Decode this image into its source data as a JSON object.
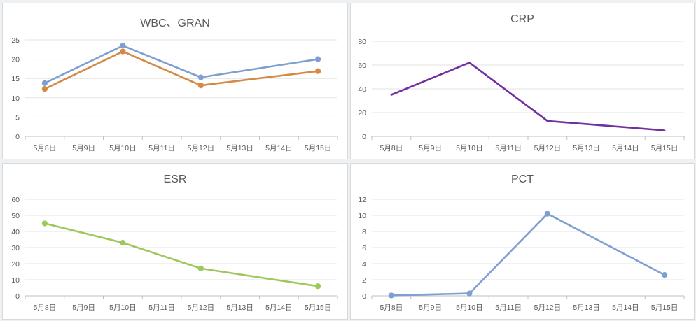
{
  "chart_data": [
    {
      "type": "line",
      "title": "WBC、GRAN",
      "categories": [
        "5月8日",
        "5月9日",
        "5月10日",
        "5月11日",
        "5月12日",
        "5月13日",
        "5月14日",
        "5月15日"
      ],
      "yticks": [
        "0",
        "5",
        "10",
        "15",
        "20",
        "25"
      ],
      "ylim": [
        0,
        25
      ],
      "grid": true,
      "series": [
        {
          "values": [
            13.8,
            null,
            23.5,
            null,
            15.3,
            null,
            null,
            20.0
          ],
          "color": "#7f9fd1",
          "markers": true
        },
        {
          "values": [
            12.3,
            null,
            22.0,
            null,
            13.2,
            null,
            null,
            16.9
          ],
          "color": "#d48a44",
          "markers": true
        }
      ]
    },
    {
      "type": "line",
      "title": "CRP",
      "categories": [
        "5月8日",
        "5月9日",
        "5月10日",
        "5月11日",
        "5月12日",
        "5月13日",
        "5月14日",
        "5月15日"
      ],
      "yticks": [
        "0",
        "20",
        "40",
        "60",
        "80"
      ],
      "ylim": [
        0,
        80
      ],
      "grid": true,
      "series": [
        {
          "values": [
            35,
            null,
            62,
            null,
            13,
            null,
            null,
            5
          ],
          "color": "#7030a0",
          "markers": false
        }
      ]
    },
    {
      "type": "line",
      "title": "ESR",
      "categories": [
        "5月8日",
        "5月9日",
        "5月10日",
        "5月11日",
        "5月12日",
        "5月13日",
        "5月14日",
        "5月15日"
      ],
      "yticks": [
        "0",
        "10",
        "20",
        "30",
        "40",
        "50",
        "60"
      ],
      "ylim": [
        0,
        60
      ],
      "grid": true,
      "series": [
        {
          "values": [
            45,
            null,
            33,
            null,
            17,
            null,
            null,
            6
          ],
          "color": "#9dc85c",
          "markers": true
        }
      ]
    },
    {
      "type": "line",
      "title": "PCT",
      "categories": [
        "5月8日",
        "5月9日",
        "5月10日",
        "5月11日",
        "5月12日",
        "5月13日",
        "5月14日",
        "5月15日"
      ],
      "yticks": [
        "0",
        "2",
        "4",
        "6",
        "8",
        "10",
        "12"
      ],
      "ylim": [
        0,
        12
      ],
      "grid": true,
      "series": [
        {
          "values": [
            0.05,
            null,
            0.3,
            null,
            10.2,
            null,
            null,
            2.6
          ],
          "color": "#7f9fd1",
          "markers": true
        }
      ]
    }
  ]
}
